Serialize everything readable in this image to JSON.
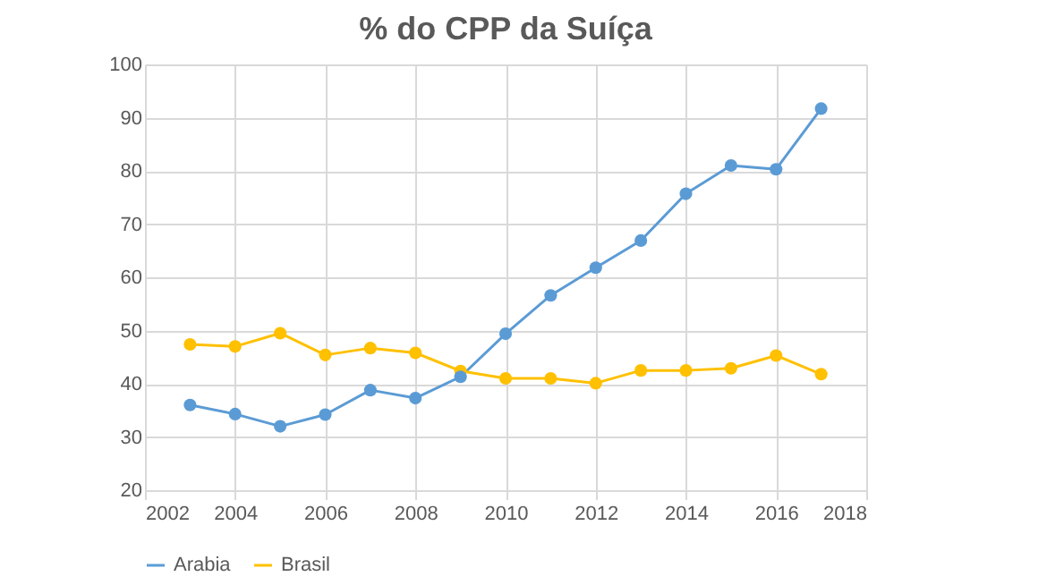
{
  "chart_data": {
    "type": "line",
    "title": "% do CPP da Suíça",
    "x": [
      2003,
      2004,
      2005,
      2006,
      2007,
      2008,
      2009,
      2010,
      2011,
      2012,
      2013,
      2014,
      2015,
      2016,
      2017
    ],
    "series": [
      {
        "name": "Arabia",
        "color": "#5b9bd5",
        "values": [
          36.0,
          34.3,
          32.0,
          34.2,
          38.8,
          37.3,
          41.3,
          49.4,
          56.6,
          61.8,
          66.9,
          75.7,
          81.0,
          80.3,
          91.7
        ]
      },
      {
        "name": "Brasil",
        "color": "#ffc000",
        "values": [
          47.4,
          47.0,
          49.5,
          45.4,
          46.7,
          45.8,
          42.4,
          41.0,
          41.0,
          40.1,
          42.5,
          42.5,
          42.9,
          45.3,
          41.8
        ]
      }
    ],
    "xlim": [
      2002,
      2018
    ],
    "xticks": [
      2002,
      2004,
      2006,
      2008,
      2010,
      2012,
      2014,
      2016,
      2018
    ],
    "ylim": [
      20,
      100
    ],
    "yticks": [
      20,
      30,
      40,
      50,
      60,
      70,
      80,
      90,
      100
    ],
    "grid": true,
    "legend": "bottom",
    "marker": "circle",
    "line_style": "solid"
  }
}
